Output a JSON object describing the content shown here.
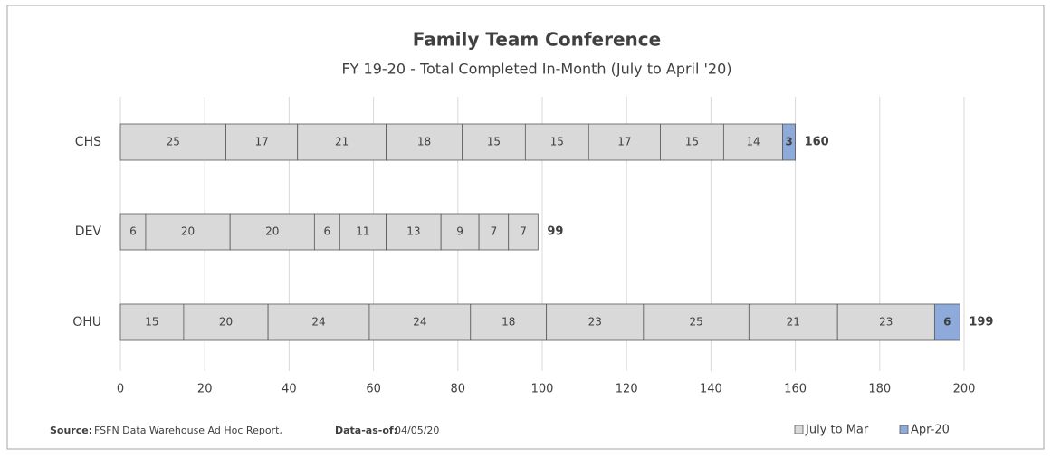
{
  "chart_data": {
    "type": "stacked-barh",
    "title": "Family Team Conference",
    "subtitle": "FY 19-20  -  Total Completed In-Month (July to April '20)",
    "categories": [
      "CHS",
      "DEV",
      "OHU"
    ],
    "series": [
      {
        "name": "July to Mar",
        "color": "#d9d9d9",
        "segments": [
          [
            25,
            17,
            21,
            18,
            15,
            15,
            17,
            15,
            14
          ],
          [
            6,
            20,
            20,
            6,
            11,
            13,
            9,
            7,
            7
          ],
          [
            15,
            20,
            24,
            24,
            18,
            23,
            25,
            21,
            23
          ]
        ]
      },
      {
        "name": "Apr-20",
        "color": "#8eaadb",
        "values": [
          3,
          null,
          6
        ]
      }
    ],
    "totals": [
      160,
      99,
      199
    ],
    "xlim": [
      0,
      200
    ],
    "xticks": [
      0,
      20,
      40,
      60,
      80,
      100,
      120,
      140,
      160,
      180,
      200
    ],
    "grid": true,
    "footer": {
      "source_label": "Source:",
      "source": "FSFN Data Warehouse Ad Hoc Report,",
      "asof_label": "Data-as-of:",
      "asof": "04/05/20"
    }
  }
}
